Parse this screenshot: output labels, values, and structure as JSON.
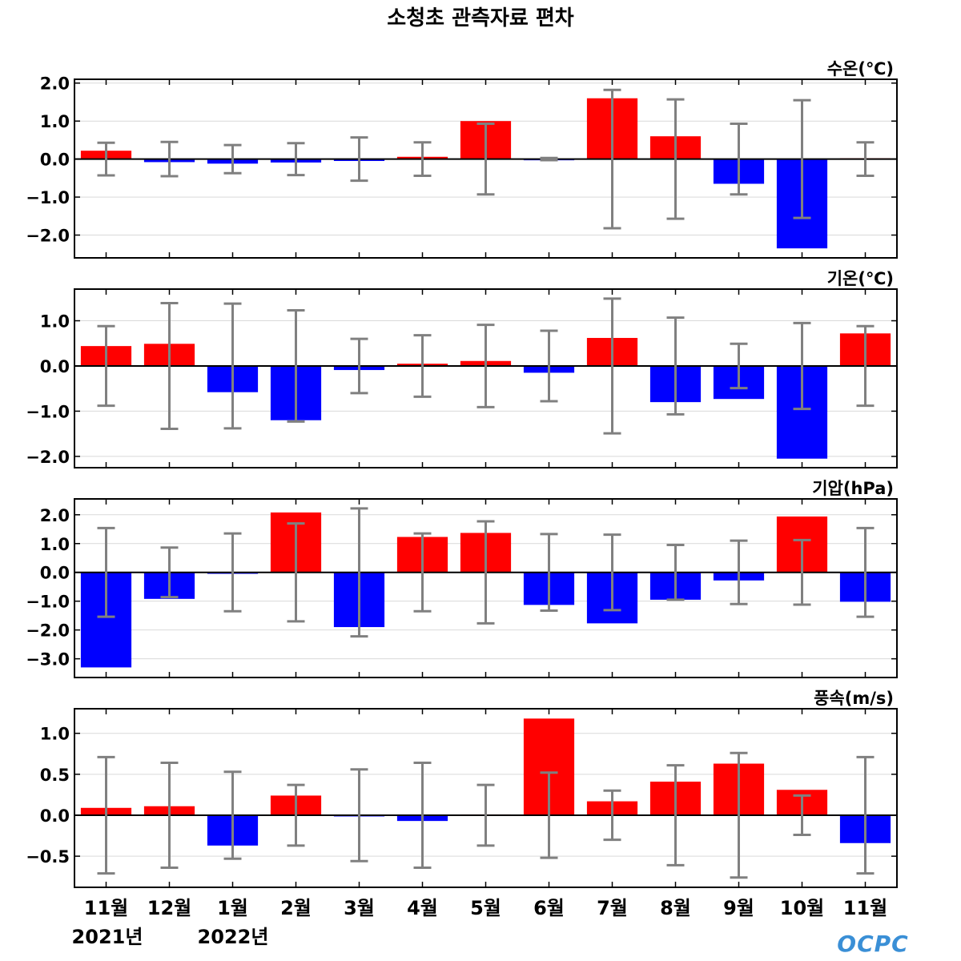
{
  "title": "소청초 관측자료 편차",
  "x_labels": [
    "11월",
    "12월",
    "1월",
    "2월",
    "3월",
    "4월",
    "5월",
    "6월",
    "7월",
    "8월",
    "9월",
    "10월",
    "11월"
  ],
  "year_labels": [
    "2021년",
    "2022년"
  ],
  "logo_text": "OCPC",
  "colors": {
    "positive": "#ff0000",
    "negative": "#0000ff",
    "errorbar": "#808080",
    "grid": "#d9d9d9",
    "logo": "#3a8fd6"
  },
  "chart_data": [
    {
      "type": "bar",
      "unit_label": "수온(℃)",
      "categories": [
        "11월",
        "12월",
        "1월",
        "2월",
        "3월",
        "4월",
        "5월",
        "6월",
        "7월",
        "8월",
        "9월",
        "10월",
        "11월"
      ],
      "values": [
        0.22,
        -0.08,
        -0.12,
        -0.09,
        -0.05,
        0.06,
        1.0,
        -0.03,
        1.6,
        0.6,
        -0.65,
        -2.35,
        0.02
      ],
      "error": [
        0.43,
        0.45,
        0.37,
        0.42,
        0.57,
        0.44,
        0.93,
        0.03,
        1.82,
        1.57,
        0.93,
        1.55,
        0.44
      ],
      "yticks": [
        2.0,
        1.0,
        0.0,
        -1.0,
        -2.0
      ],
      "ytick_labels": [
        "2.0",
        "1.0",
        "0.0",
        "−1.0",
        "−2.0"
      ],
      "ylim": [
        -2.6,
        2.1
      ],
      "grid": true
    },
    {
      "type": "bar",
      "unit_label": "기온(℃)",
      "categories": [
        "11월",
        "12월",
        "1월",
        "2월",
        "3월",
        "4월",
        "5월",
        "6월",
        "7월",
        "8월",
        "9월",
        "10월",
        "11월"
      ],
      "values": [
        0.44,
        0.49,
        -0.58,
        -1.2,
        -0.09,
        0.05,
        0.11,
        -0.15,
        0.62,
        -0.8,
        -0.73,
        -2.05,
        0.72
      ],
      "error": [
        0.88,
        1.39,
        1.38,
        1.23,
        0.6,
        0.68,
        0.91,
        0.78,
        1.49,
        1.07,
        0.49,
        0.95,
        0.88
      ],
      "yticks": [
        1.0,
        0.0,
        -1.0,
        -2.0
      ],
      "ytick_labels": [
        "1.0",
        "0.0",
        "−1.0",
        "−2.0"
      ],
      "ylim": [
        -2.25,
        1.7
      ],
      "grid": true
    },
    {
      "type": "bar",
      "unit_label": "기압(hPa)",
      "categories": [
        "11월",
        "12월",
        "1월",
        "2월",
        "3월",
        "4월",
        "5월",
        "6월",
        "7월",
        "8월",
        "9월",
        "10월",
        "11월"
      ],
      "values": [
        -3.3,
        -0.92,
        -0.05,
        2.08,
        -1.9,
        1.23,
        1.37,
        -1.13,
        -1.77,
        -0.95,
        -0.28,
        1.94,
        -1.02
      ],
      "error": [
        1.54,
        0.86,
        1.35,
        1.7,
        2.22,
        1.35,
        1.77,
        1.33,
        1.31,
        0.95,
        1.1,
        1.12,
        1.54
      ],
      "yticks": [
        2.0,
        1.0,
        0.0,
        -1.0,
        -2.0,
        -3.0
      ],
      "ytick_labels": [
        "2.0",
        "1.0",
        "0.0",
        "−1.0",
        "−2.0",
        "−3.0"
      ],
      "ylim": [
        -3.65,
        2.55
      ],
      "grid": true
    },
    {
      "type": "bar",
      "unit_label": "풍속(m/s)",
      "categories": [
        "11월",
        "12월",
        "1월",
        "2월",
        "3월",
        "4월",
        "5월",
        "6월",
        "7월",
        "8월",
        "9월",
        "10월",
        "11월"
      ],
      "values": [
        0.09,
        0.11,
        -0.37,
        0.24,
        -0.01,
        -0.07,
        0.01,
        1.18,
        0.17,
        0.41,
        0.63,
        0.31,
        -0.34
      ],
      "error": [
        0.71,
        0.64,
        0.53,
        0.37,
        0.56,
        0.64,
        0.37,
        0.52,
        0.3,
        0.61,
        0.76,
        0.24,
        0.71
      ],
      "yticks": [
        1.0,
        0.5,
        0.0,
        -0.5
      ],
      "ytick_labels": [
        "1.0",
        "0.5",
        "0.0",
        "−0.5"
      ],
      "ylim": [
        -0.88,
        1.3
      ],
      "grid": true
    }
  ]
}
